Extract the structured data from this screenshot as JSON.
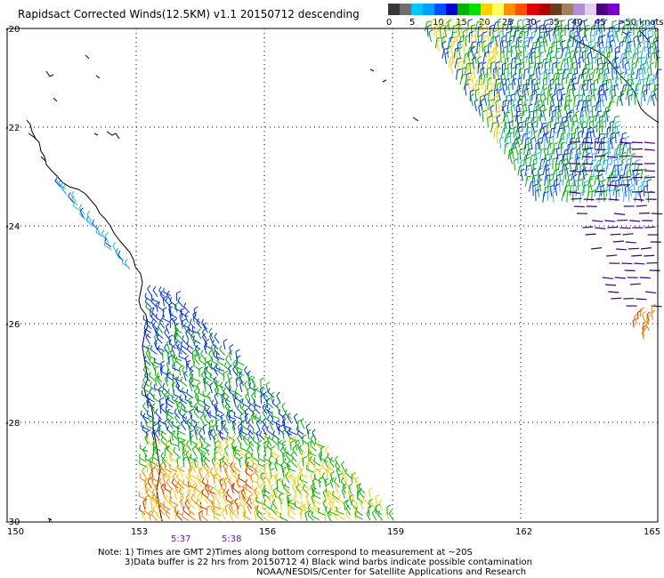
{
  "title": "Rapidsact Corrected Winds(12.5KM) v1.1 20150712 descending",
  "legend": {
    "units": "knots",
    "colors": [
      "#383838",
      "#6e6e6e",
      "#00c8ff",
      "#00a0ff",
      "#0050ff",
      "#0000d0",
      "#00b000",
      "#00e000",
      "#ffd000",
      "#ffff60",
      "#ff9000",
      "#ff5000",
      "#e00000",
      "#b00000",
      "#6a3c1e",
      "#a08060",
      "#b090d0",
      "#e0d0f0",
      "#4a0080",
      "#7a00d0"
    ],
    "labels": [
      "0",
      "5",
      "10",
      "15",
      "20",
      "25",
      "30",
      "35",
      "40",
      "45",
      ">50 knots"
    ]
  },
  "axes": {
    "lon_ticks": [
      "150",
      "153",
      "156",
      "159",
      "162",
      "165"
    ],
    "lat_ticks": [
      "-20",
      "-22",
      "-24",
      "-26",
      "-28",
      "-30"
    ]
  },
  "time_labels": [
    "5:37",
    "5:38"
  ],
  "notes": {
    "line1": "Note: 1) Times are GMT 2)Times along bottom correspond to measurement at ~20S",
    "line2": "3)Data buffer is 22 hrs from 20150712 4) Black wind barbs indicate possible contamination",
    "line3": "NOAA/NESDIS/Center for Satellite Applications and Research"
  },
  "wind_colors": {
    "blue": "#0030d8",
    "green": "#00b000",
    "yellow": "#f0d000",
    "orange": "#f08000",
    "red": "#d02000",
    "cyan": "#30b0f0",
    "purple": "#400070"
  }
}
